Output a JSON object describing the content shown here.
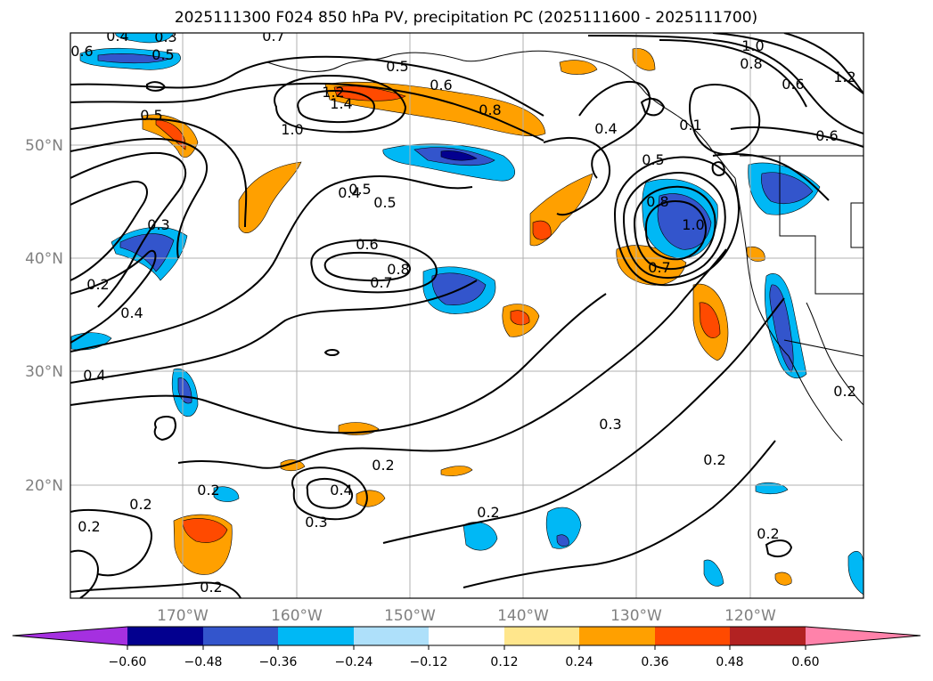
{
  "title": "2025111300 F024 850 hPa PV, precipitation PC (2025111600 - 2025111700)",
  "map": {
    "lat_labels": [
      "50°N",
      "40°N",
      "30°N",
      "20°N"
    ],
    "lon_labels": [
      "170°W",
      "160°W",
      "150°W",
      "140°W",
      "130°W",
      "120°W"
    ],
    "contour_labels": [
      "0.4",
      "0.6",
      "0.5",
      "0.7",
      "1.0",
      "0.8",
      "1.2",
      "0.5",
      "0.6",
      "1.2",
      "1.4",
      "0.8",
      "0.4",
      "0.5",
      "1.0",
      "0.6",
      "0.5",
      "0.8",
      "1.0",
      "0.5",
      "0.4",
      "0.5",
      "0.3",
      "0.6",
      "0.7",
      "0.8",
      "0.7",
      "0.2",
      "0.4",
      "0.4",
      "0.3",
      "0.2",
      "0.2",
      "0.3",
      "0.4",
      "0.2",
      "0.2",
      "0.2",
      "0.2",
      "0.2",
      "0.3",
      "0.2",
      "0.2",
      "0.1",
      "0.6"
    ]
  },
  "colorbar": {
    "ticks": [
      "−0.60",
      "−0.48",
      "−0.36",
      "−0.24",
      "−0.12",
      "0.12",
      "0.24",
      "0.36",
      "0.48",
      "0.60"
    ],
    "colors": [
      "#a530e0",
      "#03008f",
      "#3355cc",
      "#00b8f5",
      "#aee0fa",
      "#ffffff",
      "#ffe68c",
      "#ffa000",
      "#ff4a00",
      "#b22222",
      "#ff82aa"
    ]
  },
  "shading_colors": {
    "light_blue": "#00b8f5",
    "mid_blue": "#3355cc",
    "dark_blue": "#03008f",
    "orange": "#ffa000",
    "red": "#ff4a00"
  }
}
